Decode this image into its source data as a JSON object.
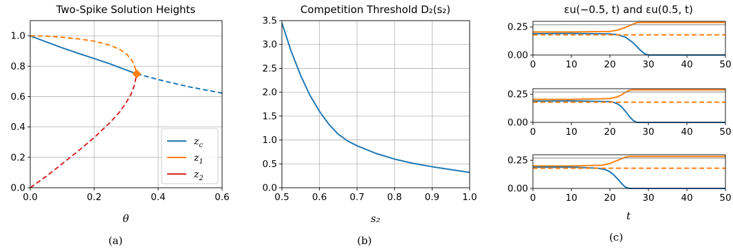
{
  "chart_data": [
    {
      "panel": "a",
      "type": "line",
      "title": "Two-Spike Solution Heights",
      "xlabel": "θ",
      "ylabel": "",
      "caption": "(a)",
      "xlim": [
        0.0,
        0.6
      ],
      "ylim": [
        0.0,
        1.1
      ],
      "xticks": [
        "0.0",
        "0.2",
        "0.4",
        "0.6"
      ],
      "yticks": [
        "0.0",
        "0.2",
        "0.4",
        "0.6",
        "0.8",
        "1.0"
      ],
      "grid": true,
      "legend": {
        "placement": "lower-right",
        "entries": [
          "z_c",
          "z_1",
          "z_2"
        ]
      },
      "series": [
        {
          "name": "z_c",
          "color": "#1f77b4",
          "style": "solid",
          "x": [
            0.0,
            0.05,
            0.1,
            0.15,
            0.2,
            0.25,
            0.3,
            0.333
          ],
          "y": [
            1.0,
            0.96,
            0.921,
            0.885,
            0.85,
            0.815,
            0.775,
            0.75
          ]
        },
        {
          "name": "z_c",
          "color": "#1f77b4",
          "style": "dashed",
          "x": [
            0.333,
            0.4,
            0.45,
            0.5,
            0.55,
            0.6
          ],
          "y": [
            0.75,
            0.712,
            0.687,
            0.663,
            0.643,
            0.623
          ]
        },
        {
          "name": "z_1",
          "color": "#ff7f0e",
          "style": "dashed",
          "x": [
            0.0,
            0.05,
            0.1,
            0.15,
            0.2,
            0.25,
            0.28,
            0.3,
            0.315,
            0.325,
            0.333
          ],
          "y": [
            1.0,
            0.998,
            0.99,
            0.98,
            0.965,
            0.938,
            0.91,
            0.882,
            0.848,
            0.81,
            0.75
          ]
        },
        {
          "name": "z_2",
          "color": "#d62728",
          "style": "dashed",
          "x": [
            0.0,
            0.05,
            0.1,
            0.15,
            0.2,
            0.25,
            0.28,
            0.3,
            0.315,
            0.325,
            0.333
          ],
          "y": [
            0.0,
            0.075,
            0.158,
            0.242,
            0.33,
            0.43,
            0.5,
            0.56,
            0.615,
            0.67,
            0.75
          ]
        }
      ],
      "markers": [
        {
          "x": 0.333,
          "y": 0.75,
          "color": "#ff7f0e",
          "shape": "diamond"
        }
      ]
    },
    {
      "panel": "b",
      "type": "line",
      "title": "Competition Threshold D₂(s₂)",
      "xlabel": "s₂",
      "ylabel": "",
      "caption": "(b)",
      "xlim": [
        0.5,
        1.0
      ],
      "ylim": [
        0.0,
        3.5
      ],
      "xticks": [
        "0.5",
        "0.6",
        "0.7",
        "0.8",
        "0.9",
        "1.0"
      ],
      "yticks": [
        "0.0",
        "0.5",
        "1.0",
        "1.5",
        "2.0",
        "2.5",
        "3.0",
        "3.5"
      ],
      "grid": true,
      "series": [
        {
          "name": "",
          "color": "#1f77b4",
          "style": "solid",
          "x": [
            0.5,
            0.525,
            0.55,
            0.575,
            0.6,
            0.625,
            0.65,
            0.675,
            0.7,
            0.75,
            0.8,
            0.85,
            0.9,
            0.95,
            1.0
          ],
          "y": [
            3.45,
            2.85,
            2.35,
            1.93,
            1.6,
            1.33,
            1.12,
            0.98,
            0.88,
            0.72,
            0.6,
            0.51,
            0.44,
            0.38,
            0.32
          ]
        }
      ]
    },
    {
      "panel": "c",
      "type": "line",
      "title": "εu(−0.5, t) and εu(0.5, t)",
      "xlabel": "t",
      "ylabel": "",
      "caption": "(c)",
      "subplots": [
        {
          "xlim": [
            0,
            50
          ],
          "ylim": [
            0.0,
            0.3
          ],
          "xticks": [
            "0",
            "10",
            "20",
            "30",
            "40",
            "50"
          ],
          "yticks": [
            "0.00",
            "0.25"
          ],
          "series": [
            {
              "color": "#ff7f0e",
              "style": "solid",
              "x": [
                0,
                10,
                20,
                22,
                24,
                26,
                27,
                28,
                50
              ],
              "y": [
                0.205,
                0.205,
                0.21,
                0.222,
                0.245,
                0.275,
                0.288,
                0.29,
                0.29
              ]
            },
            {
              "color": "#1f77b4",
              "style": "solid",
              "x": [
                0,
                10,
                20,
                22,
                24,
                26,
                27,
                28,
                29,
                30,
                50
              ],
              "y": [
                0.19,
                0.192,
                0.188,
                0.18,
                0.16,
                0.11,
                0.075,
                0.04,
                0.012,
                0.0,
                0.0
              ]
            },
            {
              "color": "#ff7f0e",
              "style": "dashed",
              "x": [
                0,
                50
              ],
              "y": [
                0.18,
                0.18
              ]
            },
            {
              "color": "#808080",
              "style": "solid",
              "x": [
                0,
                50
              ],
              "y": [
                0.27,
                0.27
              ]
            }
          ]
        },
        {
          "xlim": [
            0,
            50
          ],
          "ylim": [
            0.0,
            0.3
          ],
          "xticks": [
            "0",
            "10",
            "20",
            "30",
            "40",
            "50"
          ],
          "yticks": [
            "0.00",
            "0.25"
          ],
          "series": [
            {
              "color": "#ff7f0e",
              "style": "solid",
              "x": [
                0,
                10,
                20,
                22,
                23,
                24,
                25,
                26,
                50
              ],
              "y": [
                0.205,
                0.205,
                0.212,
                0.228,
                0.245,
                0.268,
                0.285,
                0.29,
                0.29
              ]
            },
            {
              "color": "#1f77b4",
              "style": "solid",
              "x": [
                0,
                10,
                20,
                21,
                22,
                23,
                24,
                25,
                26,
                27,
                50
              ],
              "y": [
                0.19,
                0.192,
                0.185,
                0.178,
                0.165,
                0.14,
                0.1,
                0.055,
                0.018,
                0.0,
                0.0
              ]
            },
            {
              "color": "#ff7f0e",
              "style": "dashed",
              "x": [
                0,
                50
              ],
              "y": [
                0.18,
                0.18
              ]
            },
            {
              "color": "#808080",
              "style": "solid",
              "x": [
                0,
                50
              ],
              "y": [
                0.27,
                0.27
              ]
            }
          ]
        },
        {
          "xlim": [
            0,
            50
          ],
          "ylim": [
            0.0,
            0.3
          ],
          "xticks": [
            "0",
            "10",
            "20",
            "30",
            "40",
            "50"
          ],
          "yticks": [
            "0.00",
            "0.25"
          ],
          "series": [
            {
              "color": "#ff7f0e",
              "style": "solid",
              "x": [
                0,
                10,
                18,
                20,
                22,
                24,
                25,
                50
              ],
              "y": [
                0.2,
                0.2,
                0.207,
                0.222,
                0.25,
                0.278,
                0.285,
                0.285
              ]
            },
            {
              "color": "#1f77b4",
              "style": "solid",
              "x": [
                0,
                10,
                17,
                19,
                20,
                21,
                22,
                23,
                24,
                25,
                50
              ],
              "y": [
                0.19,
                0.19,
                0.18,
                0.165,
                0.148,
                0.12,
                0.085,
                0.045,
                0.012,
                0.0,
                0.0
              ]
            },
            {
              "color": "#ff7f0e",
              "style": "dashed",
              "x": [
                0,
                50
              ],
              "y": [
                0.18,
                0.18
              ]
            },
            {
              "color": "#808080",
              "style": "solid",
              "x": [
                0,
                50
              ],
              "y": [
                0.27,
                0.27
              ]
            }
          ]
        }
      ]
    }
  ]
}
